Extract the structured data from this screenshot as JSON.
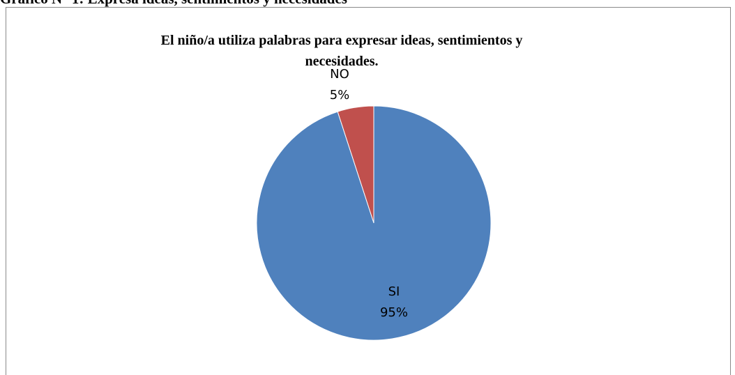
{
  "document": {
    "heading": "Gráfico N° 1: Expresa ideas, sentimientos y  necesidades"
  },
  "chart_data": {
    "type": "pie",
    "title_lines": [
      "El niño/a utiliza palabras para expresar ideas, sentimientos y",
      "necesidades."
    ],
    "categories": [
      "SI",
      "NO"
    ],
    "values": [
      95,
      5
    ],
    "slices": [
      {
        "label": "SI",
        "value": 95,
        "percent_label": "95%",
        "color": "#4f81bd"
      },
      {
        "label": "NO",
        "value": 5,
        "percent_label": "5%",
        "color": "#c0504d"
      }
    ],
    "start": "12 o'clock",
    "direction": "counterclockwise",
    "legend": "none"
  }
}
